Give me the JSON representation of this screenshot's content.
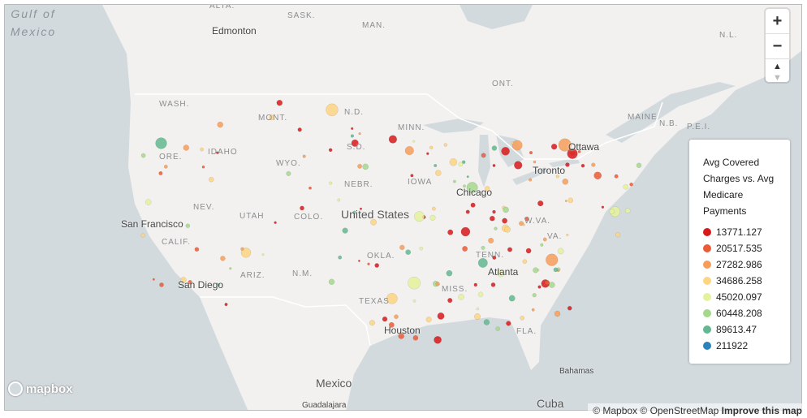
{
  "map": {
    "labels": [
      "ALTA.",
      "SASK.",
      "MAN.",
      "Edmonton",
      "N.L.",
      "ONT.",
      "WASH.",
      "MONT.",
      "N.D.",
      "MINN.",
      "IDAHO",
      "ORE.",
      "S.D.",
      "WYO.",
      "N.B.",
      "P.E.I.",
      "MAINE",
      "Ottawa",
      "Toronto",
      "Chicago",
      "IOWA",
      "NEBR.",
      "NEV.",
      "UTAH",
      "COLO.",
      "United States",
      "San Francisco",
      "CALIF.",
      "W.VA.",
      "VA.",
      "ARIZ.",
      "N.M.",
      "OKLA.",
      "TENN.",
      "Atlanta",
      "San Diego",
      "MISS.",
      "TEXAS",
      "Houston",
      "FLA.",
      "Gulf of Mexico",
      "Mexico",
      "Bahamas",
      "Cuba",
      "Guadalajara"
    ]
  },
  "legend": {
    "title": "Avg Covered Charges vs. Avg Medicare Payments",
    "items": [
      {
        "label": 13771.127,
        "color": "#d7191c"
      },
      {
        "label": 20517.535,
        "color": "#ea5b36"
      },
      {
        "label": 27282.986,
        "color": "#f89d59"
      },
      {
        "label": 34686.258,
        "color": "#fed581"
      },
      {
        "label": 45020.097,
        "color": "#e5f29c"
      },
      {
        "label": 60448.208,
        "color": "#a4d98c"
      },
      {
        "label": 89613.47,
        "color": "#62b891"
      },
      {
        "label": 211922,
        "color": "#2b83ba"
      }
    ]
  },
  "controls": {
    "zoom_in": "+",
    "zoom_out": "−"
  },
  "logo": "mapbox",
  "attribution": {
    "mapbox": "© Mapbox",
    "osm": "© OpenStreetMap",
    "improve": "Improve this map"
  }
}
